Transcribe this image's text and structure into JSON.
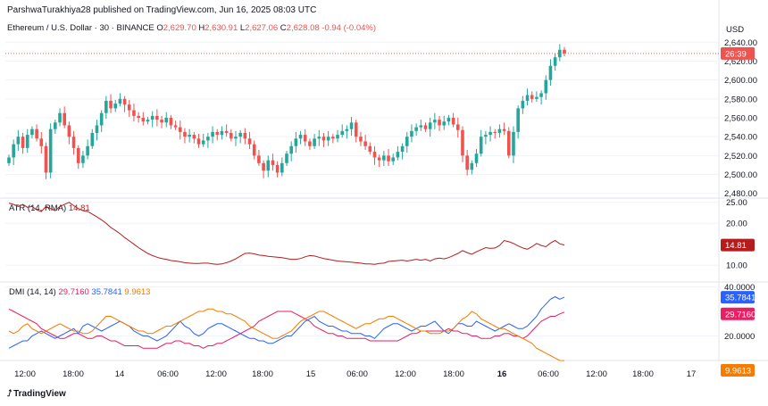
{
  "publisher": "ParshwaTurakhiya28 published on TradingView.com, Jun 16, 2025 08:03 UTC",
  "currency": "USD",
  "symbol_line": {
    "symbol": "Ethereum / U.S. Dollar · 30 · BINANCE",
    "o_label": "O",
    "o": "2,629.70",
    "h_label": "H",
    "h": "2,630.91",
    "l_label": "L",
    "l": "2,627.06",
    "c_label": "C",
    "c": "2,628.08",
    "change": "-0.94 (-0.04%)"
  },
  "countdown_badge": "26:39",
  "atr_legend": {
    "label": "ATR (14, RMA)",
    "value": "14.81"
  },
  "atr_badge": "14.81",
  "dmi_legend": {
    "label": "DMI (14, 14)",
    "plus": "29.7160",
    "minus": "35.7841",
    "adx": "9.9613"
  },
  "dmi_badges": {
    "minus": "35.7841",
    "plus": "29.7160",
    "adx": "9.9613"
  },
  "brand": "TradingView",
  "colors": {
    "up": "#26a69a",
    "down": "#ef5350",
    "atr": "#b71c1c",
    "dmi_plus": "#e91e63",
    "dmi_minus": "#2962ff",
    "adx": "#f57c00",
    "text": "#131722",
    "grid": "#f0f3fa",
    "axis_text": "#131722"
  },
  "chart_data": [
    {
      "type": "candlestick",
      "title": "Ethereum / U.S. Dollar · 30 · BINANCE",
      "x_tick_labels": [
        "12:00",
        "18:00",
        "14",
        "06:00",
        "12:00",
        "18:00",
        "15",
        "06:00",
        "12:00",
        "18:00",
        "16",
        "06:00",
        "12:00",
        "18:00",
        "17"
      ],
      "y_tick_labels": [
        "2,640.00",
        "2,620.00",
        "2,600.00",
        "2,580.00",
        "2,560.00",
        "2,540.00",
        "2,520.00",
        "2,500.00",
        "2,480.00"
      ],
      "ylim": [
        2475,
        2645
      ],
      "last_close": 2628.08,
      "closes": [
        2518,
        2532,
        2540,
        2528,
        2542,
        2548,
        2538,
        2530,
        2502,
        2548,
        2555,
        2565,
        2552,
        2540,
        2528,
        2512,
        2520,
        2530,
        2544,
        2552,
        2565,
        2578,
        2570,
        2575,
        2580,
        2574,
        2568,
        2562,
        2560,
        2556,
        2558,
        2562,
        2558,
        2555,
        2560,
        2552,
        2550,
        2545,
        2540,
        2542,
        2538,
        2532,
        2536,
        2540,
        2545,
        2542,
        2546,
        2544,
        2538,
        2540,
        2544,
        2538,
        2532,
        2520,
        2512,
        2504,
        2515,
        2510,
        2502,
        2512,
        2522,
        2530,
        2538,
        2542,
        2535,
        2530,
        2538,
        2540,
        2536,
        2540,
        2538,
        2542,
        2546,
        2548,
        2555,
        2540,
        2535,
        2530,
        2524,
        2518,
        2515,
        2520,
        2514,
        2518,
        2524,
        2530,
        2540,
        2546,
        2550,
        2552,
        2548,
        2555,
        2558,
        2552,
        2556,
        2560,
        2553,
        2547,
        2520,
        2505,
        2512,
        2522,
        2540,
        2542,
        2545,
        2544,
        2548,
        2546,
        2520,
        2545,
        2570,
        2578,
        2584,
        2580,
        2582,
        2586,
        2600,
        2615,
        2624,
        2632,
        2628.08
      ],
      "xlabel": "",
      "ylabel": ""
    },
    {
      "type": "line",
      "title": "ATR (14, RMA)",
      "y_tick_labels": [
        "25.00",
        "20.00",
        "10.00"
      ],
      "ylim": [
        6,
        26
      ],
      "series": [
        {
          "name": "ATR (14, RMA)",
          "values": [
            24.8,
            24.5,
            24.0,
            24.5,
            23.8,
            24.0,
            23.2,
            22.8,
            24.0,
            23.5,
            23.0,
            24.0,
            24.5,
            25.0,
            24.2,
            23.5,
            23.0,
            22.8,
            22.2,
            21.5,
            20.8,
            20.0,
            19.0,
            18.3,
            17.5,
            16.6,
            15.8,
            15.0,
            14.2,
            13.5,
            12.8,
            12.3,
            11.9,
            11.6,
            11.4,
            11.1,
            11.0,
            10.8,
            10.6,
            10.5,
            10.4,
            10.4,
            10.5,
            10.5,
            10.3,
            10.2,
            10.3,
            10.6,
            11.0,
            11.5,
            12.2,
            12.8,
            12.9,
            12.7,
            12.4,
            12.3,
            12.1,
            12.0,
            11.9,
            11.8,
            11.6,
            11.4,
            11.4,
            11.6,
            12.0,
            12.3,
            12.2,
            11.9,
            11.6,
            11.4,
            11.2,
            11.0,
            10.9,
            10.8,
            10.7,
            10.6,
            10.5,
            10.3,
            10.3,
            10.2,
            10.4,
            10.5,
            10.9,
            11.0,
            11.1,
            11.2,
            11.0,
            11.2,
            11.4,
            11.2,
            11.4,
            11.0,
            11.5,
            11.7,
            11.5,
            11.8,
            12.3,
            12.8,
            13.5,
            13.0,
            12.6,
            13.2,
            13.7,
            14.2,
            14.0,
            14.1,
            14.7,
            15.9,
            15.6,
            15.2,
            14.6,
            14.1,
            13.8,
            14.4,
            15.2,
            14.7,
            14.4,
            15.3,
            15.9,
            15.1,
            14.81
          ]
        }
      ]
    },
    {
      "type": "line",
      "title": "DMI (14, 14)",
      "y_tick_labels": [
        "40.0000",
        "20.0000"
      ],
      "ylim": [
        10,
        42
      ],
      "series": [
        {
          "name": "+DI",
          "values": [
            31,
            30,
            29,
            28,
            27,
            26,
            25,
            23,
            22,
            21,
            20,
            19,
            19,
            20,
            21,
            21,
            20,
            19,
            19,
            20,
            20,
            19,
            18,
            18,
            17,
            16,
            16,
            16,
            16,
            15,
            15,
            15,
            15,
            16,
            17,
            17,
            18,
            18,
            17,
            17,
            16,
            16,
            15,
            16,
            16,
            17,
            17,
            18,
            19,
            20,
            21,
            22,
            23,
            24,
            26,
            27,
            28,
            29,
            30,
            30,
            30,
            30,
            29,
            28,
            27,
            26,
            24,
            23,
            22,
            21,
            21,
            20,
            20,
            19,
            19,
            19,
            19,
            19,
            18,
            18,
            18,
            18,
            18,
            18,
            18,
            19,
            20,
            21,
            21,
            22,
            22,
            22,
            22,
            22,
            22,
            23,
            22,
            22,
            21,
            21,
            20,
            20,
            19,
            19,
            19,
            20,
            20,
            21,
            21,
            20,
            20,
            19,
            20,
            22,
            24,
            26,
            27,
            28,
            28,
            29,
            29.716
          ]
        },
        {
          "name": "-DI",
          "values": [
            15,
            16,
            17,
            18,
            18,
            20,
            21,
            22,
            21,
            20,
            19,
            20,
            21,
            22,
            23,
            21,
            24,
            25,
            24,
            23,
            22,
            23,
            24,
            25,
            26,
            25,
            24,
            22,
            21,
            20,
            20,
            19,
            18,
            19,
            20,
            22,
            24,
            26,
            24,
            23,
            21,
            20,
            21,
            23,
            24,
            25,
            25,
            24,
            23,
            22,
            21,
            20,
            19,
            19,
            18,
            18,
            17,
            17,
            18,
            19,
            20,
            20,
            22,
            24,
            26,
            27,
            28,
            26,
            25,
            24,
            24,
            23,
            22,
            22,
            21,
            21,
            21,
            20,
            20,
            19,
            21,
            23,
            24,
            25,
            25,
            24,
            23,
            22,
            23,
            24,
            24,
            25,
            26,
            24,
            22,
            21,
            23,
            25,
            25,
            24,
            24,
            26,
            25,
            24,
            23,
            22,
            23,
            24,
            25,
            24,
            23,
            23,
            24,
            26,
            28,
            31,
            33,
            35,
            36,
            35,
            35.7841
          ]
        },
        {
          "name": "ADX",
          "values": [
            22,
            21,
            22,
            24,
            25,
            23,
            22,
            21,
            22,
            23,
            24,
            25,
            24,
            23,
            22,
            22,
            21,
            21,
            22,
            24,
            26,
            28,
            28,
            27,
            26,
            25,
            24,
            23,
            22,
            22,
            21,
            21,
            22,
            23,
            24,
            24,
            25,
            26,
            27,
            28,
            29,
            30,
            30,
            31,
            31,
            30,
            30,
            29,
            29,
            28,
            27,
            26,
            24,
            23,
            22,
            21,
            20,
            19,
            19,
            20,
            21,
            22,
            24,
            26,
            27,
            28,
            29,
            30,
            30,
            29,
            28,
            27,
            26,
            25,
            24,
            23,
            24,
            25,
            25,
            26,
            27,
            27,
            28,
            28,
            27,
            26,
            25,
            24,
            23,
            22,
            22,
            21,
            21,
            21,
            22,
            22,
            23,
            25,
            27,
            28,
            30,
            29,
            27,
            26,
            25,
            24,
            23,
            23,
            22,
            21,
            20,
            19,
            18,
            17,
            15,
            14,
            13,
            12,
            11,
            10,
            9.9613
          ]
        }
      ]
    }
  ]
}
